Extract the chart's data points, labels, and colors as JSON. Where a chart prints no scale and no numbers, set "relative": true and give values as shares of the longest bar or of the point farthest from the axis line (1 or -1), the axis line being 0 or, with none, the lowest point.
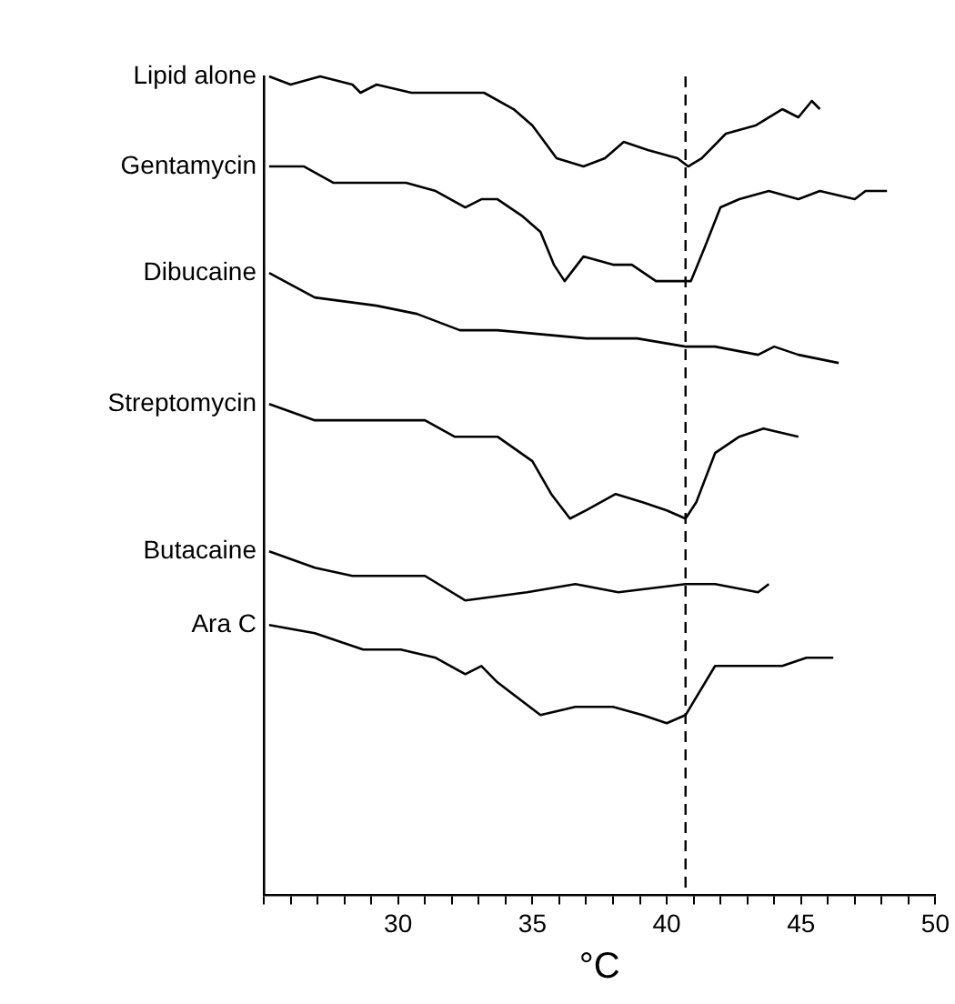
{
  "chart_data": {
    "type": "line",
    "xlabel": "°C",
    "relative": true,
    "legend": false,
    "grid": false,
    "marker": "none",
    "tick_labels": "x",
    "xlim": [
      25,
      50
    ],
    "xticks": [
      {
        "value": 25,
        "label": null
      },
      {
        "value": 26,
        "label": null
      },
      {
        "value": 27,
        "label": null
      },
      {
        "value": 28,
        "label": null
      },
      {
        "value": 29,
        "label": null
      },
      30,
      {
        "value": 31,
        "label": null
      },
      {
        "value": 32,
        "label": null
      },
      {
        "value": 33,
        "label": null
      },
      {
        "value": 34,
        "label": null
      },
      35,
      {
        "value": 36,
        "label": null
      },
      {
        "value": 37,
        "label": null
      },
      {
        "value": 38,
        "label": null
      },
      {
        "value": 39,
        "label": null
      },
      40,
      {
        "value": 41,
        "label": null
      },
      {
        "value": 42,
        "label": null
      },
      {
        "value": 43,
        "label": null
      },
      {
        "value": 44,
        "label": null
      },
      45,
      {
        "value": 46,
        "label": null
      },
      {
        "value": 47,
        "label": null
      },
      {
        "value": 48,
        "label": null
      },
      {
        "value": 49,
        "label": null
      },
      50
    ],
    "ref_lines": [
      {
        "axis": "x",
        "value": 40.7,
        "line_style": "dashed",
        "color": "#000000"
      }
    ],
    "series": [
      {
        "name": "Lipid alone",
        "color": "#000000",
        "x": [
          25.2,
          26.0,
          27.1,
          28.3,
          28.6,
          29.2,
          30.5,
          32.5,
          33.2,
          34.3,
          35.0,
          35.9,
          36.9,
          37.7,
          38.4,
          39.3,
          40.4,
          40.8,
          41.3,
          42.2,
          43.3,
          44.3,
          44.9,
          45.4,
          45.7
        ],
        "values": [
          1.0,
          0.99,
          1.0,
          0.99,
          0.98,
          0.99,
          0.98,
          0.98,
          0.98,
          0.96,
          0.94,
          0.9,
          0.89,
          0.9,
          0.92,
          0.91,
          0.9,
          0.89,
          0.9,
          0.93,
          0.94,
          0.96,
          0.95,
          0.97,
          0.96
        ]
      },
      {
        "name": "Gentamycin",
        "color": "#000000",
        "x": [
          25.2,
          26.5,
          27.6,
          28.7,
          30.3,
          31.4,
          32.5,
          33.1,
          33.7,
          34.6,
          35.3,
          35.8,
          36.2,
          36.9,
          38.0,
          38.7,
          39.6,
          40.9,
          41.4,
          42.0,
          42.7,
          43.8,
          44.9,
          45.7,
          47.0,
          47.4,
          48.2
        ],
        "values": [
          0.89,
          0.89,
          0.87,
          0.87,
          0.87,
          0.86,
          0.84,
          0.85,
          0.85,
          0.83,
          0.81,
          0.77,
          0.75,
          0.78,
          0.77,
          0.77,
          0.75,
          0.75,
          0.79,
          0.84,
          0.85,
          0.86,
          0.85,
          0.86,
          0.85,
          0.86,
          0.86
        ]
      },
      {
        "name": "Dibucaine",
        "color": "#000000",
        "x": [
          25.2,
          26.9,
          29.2,
          30.7,
          32.3,
          33.7,
          37.0,
          38.9,
          40.7,
          41.8,
          43.4,
          44.0,
          44.9,
          46.4
        ],
        "values": [
          0.76,
          0.73,
          0.72,
          0.71,
          0.69,
          0.69,
          0.68,
          0.68,
          0.67,
          0.67,
          0.66,
          0.67,
          0.66,
          0.65
        ]
      },
      {
        "name": "Streptomycin",
        "color": "#000000",
        "x": [
          25.2,
          26.9,
          29.2,
          31.0,
          32.1,
          32.5,
          32.8,
          33.7,
          35.0,
          35.7,
          36.4,
          37.0,
          38.1,
          39.1,
          40.0,
          40.7,
          41.1,
          41.8,
          42.7,
          43.6,
          44.9
        ],
        "values": [
          0.6,
          0.58,
          0.58,
          0.58,
          0.56,
          0.56,
          0.56,
          0.56,
          0.53,
          0.49,
          0.46,
          0.47,
          0.49,
          0.48,
          0.47,
          0.46,
          0.48,
          0.54,
          0.56,
          0.57,
          0.56
        ]
      },
      {
        "name": "Butacaine",
        "color": "#000000",
        "x": [
          25.2,
          26.9,
          28.3,
          29.2,
          31.0,
          32.5,
          34.8,
          36.6,
          38.2,
          40.7,
          41.8,
          43.4,
          43.8
        ],
        "values": [
          0.42,
          0.4,
          0.39,
          0.39,
          0.39,
          0.36,
          0.37,
          0.38,
          0.37,
          0.38,
          0.38,
          0.37,
          0.38
        ]
      },
      {
        "name": "Ara C",
        "color": "#000000",
        "x": [
          25.2,
          26.9,
          28.7,
          30.1,
          31.4,
          32.5,
          33.1,
          33.7,
          35.3,
          36.6,
          38.0,
          39.1,
          40.0,
          40.7,
          41.8,
          43.1,
          44.3,
          45.2,
          46.2
        ],
        "values": [
          0.33,
          0.32,
          0.3,
          0.3,
          0.29,
          0.27,
          0.28,
          0.26,
          0.22,
          0.23,
          0.23,
          0.22,
          0.21,
          0.22,
          0.28,
          0.28,
          0.28,
          0.29,
          0.29
        ]
      }
    ]
  }
}
